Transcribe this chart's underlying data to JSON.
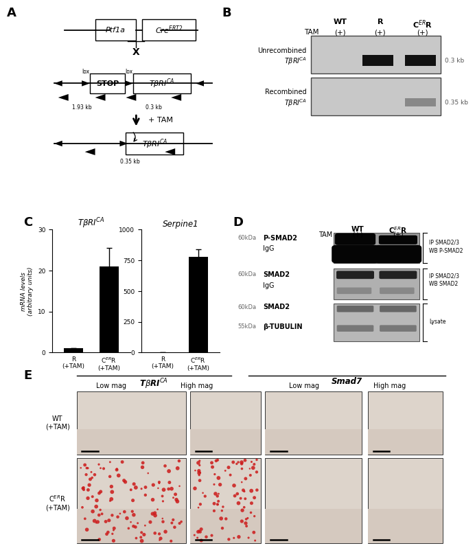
{
  "panel_A": {
    "gene1": "Ptf1a",
    "gene2": "Cre$^{ERT2}$",
    "stop_label": "STOP",
    "tbri_label": "TβRI$^{CA}$",
    "lox_label": "lox",
    "size1": "1.93 kb",
    "size2": "0.3 kb",
    "size3": "0.35 kb",
    "x_label": "X",
    "tam_label": "+ TAM"
  },
  "panel_B": {
    "col_labels": [
      "WT",
      "R",
      "C$^{ER}$R"
    ],
    "tam_row": "TAM",
    "tam_labels": [
      "(+)",
      "(+)",
      "(+)"
    ],
    "row1_label1": "Unrecombined",
    "row1_label2": "TβRI$^{CA}$",
    "row2_label1": "Recombined",
    "row2_label2": "TβRI$^{CA}$",
    "size_label1": "0.3 kb",
    "size_label2": "0.35 kb",
    "gel_bg": "#c8c8c8"
  },
  "panel_C": {
    "bar1_title": "TβRI$^{CA}$",
    "bar2_title": "Serpine1",
    "cat1": [
      "R\n(+TAM)",
      "C$^{ER}$R\n(+TAM)"
    ],
    "values1": [
      1.0,
      21.0
    ],
    "error1": [
      0.0,
      4.5
    ],
    "values2": [
      0,
      780
    ],
    "error2": [
      0,
      60
    ],
    "ylabel": "mRNA levels\n(arbitrary units)",
    "ylim1": [
      0,
      30
    ],
    "ylim2": [
      0,
      1000
    ],
    "yticks1": [
      0,
      10,
      20,
      30
    ],
    "yticks2": [
      0,
      250,
      500,
      750,
      1000
    ],
    "bar_color": "#000000"
  },
  "panel_D": {
    "col_labels": [
      "WT",
      "C$^{ER}$R"
    ],
    "tam_labels": [
      "(+)",
      "(+)"
    ],
    "gel1_bg": "#aaaaaa",
    "gel2_bg": "#b0b0b0",
    "gel3_bg": "#b8b8b8"
  },
  "panel_E": {
    "col_group1": "TβRI$^{CA}$",
    "col_group2": "Smad7",
    "subcols": [
      "Low mag",
      "High mag",
      "Low mag",
      "High mag"
    ],
    "row_labels": [
      "WT\n(+TAM)",
      "C$^{ER}$R\n(+TAM)"
    ],
    "tissue_bg": "#ddd0c5",
    "dot_color": "#cc2020"
  },
  "bg_color": "#ffffff"
}
